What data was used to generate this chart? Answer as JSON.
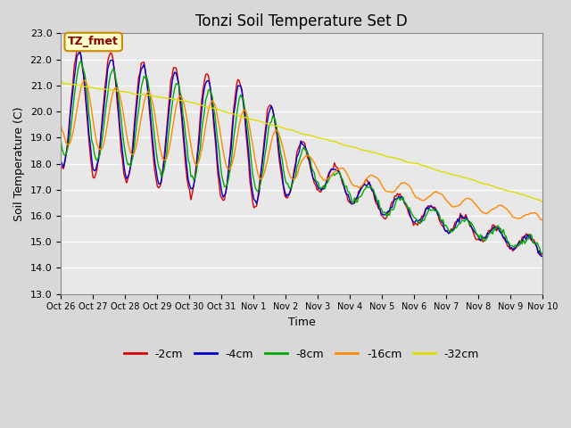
{
  "title": "Tonzi Soil Temperature Set D",
  "xlabel": "Time",
  "ylabel": "Soil Temperature (C)",
  "ylim": [
    13.0,
    23.0
  ],
  "yticks": [
    13.0,
    14.0,
    15.0,
    16.0,
    17.0,
    18.0,
    19.0,
    20.0,
    21.0,
    22.0,
    23.0
  ],
  "xtick_labels": [
    "Oct 26",
    "Oct 27",
    "Oct 28",
    "Oct 29",
    "Oct 30",
    "Oct 31",
    "Nov 1",
    "Nov 2",
    "Nov 3",
    "Nov 4",
    "Nov 5",
    "Nov 6",
    "Nov 7",
    "Nov 8",
    "Nov 9",
    "Nov 10"
  ],
  "series_colors": [
    "#dd0000",
    "#0000cc",
    "#00aa00",
    "#ff8800",
    "#dddd00"
  ],
  "series_labels": [
    "-2cm",
    "-4cm",
    "-8cm",
    "-16cm",
    "-32cm"
  ],
  "fig_bg_color": "#d8d8d8",
  "plot_bg_color": "#e8e8e8",
  "annotation_text": "TZ_fmet",
  "annotation_bg": "#ffffcc",
  "annotation_border": "#cc8800",
  "title_fontsize": 12,
  "axis_fontsize": 9,
  "tick_fontsize": 8,
  "legend_fontsize": 9,
  "line_width": 1.0,
  "n_points": 360
}
